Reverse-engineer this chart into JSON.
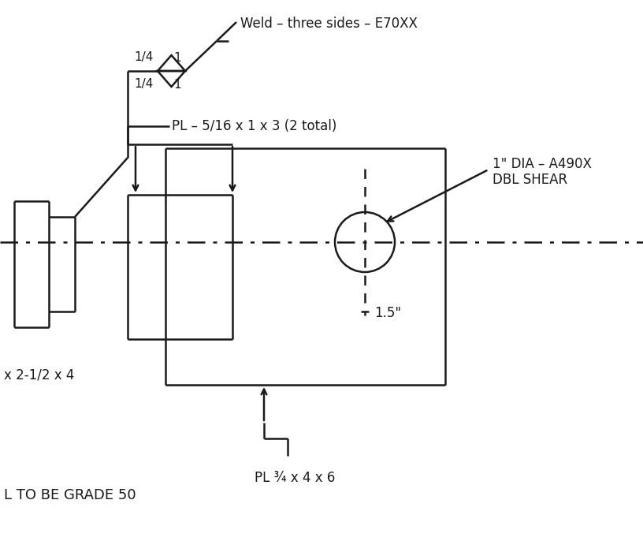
{
  "bg": "#ffffff",
  "lc": "#1a1a1a",
  "figsize": [
    8.16,
    6.86
  ],
  "dpi": 100,
  "lw": 1.8,
  "texts": {
    "weld_label": "Weld – three sides – E70XX",
    "pl_top": "PL – 5/16 x 1 x 3 (2 total)",
    "bolt_line1": "1\" DIA – A490X",
    "bolt_line2": "DBL SHEAR",
    "dim_15": "1.5\"",
    "pl_bot": "PL ¾ x 4 x 6",
    "angle": "x 2-1/2 x 4",
    "grade": "L TO BE GRADE 50",
    "w14_top": "1/4",
    "w1_top": "1",
    "w14_bot": "1/4",
    "w1_bot": "1"
  }
}
